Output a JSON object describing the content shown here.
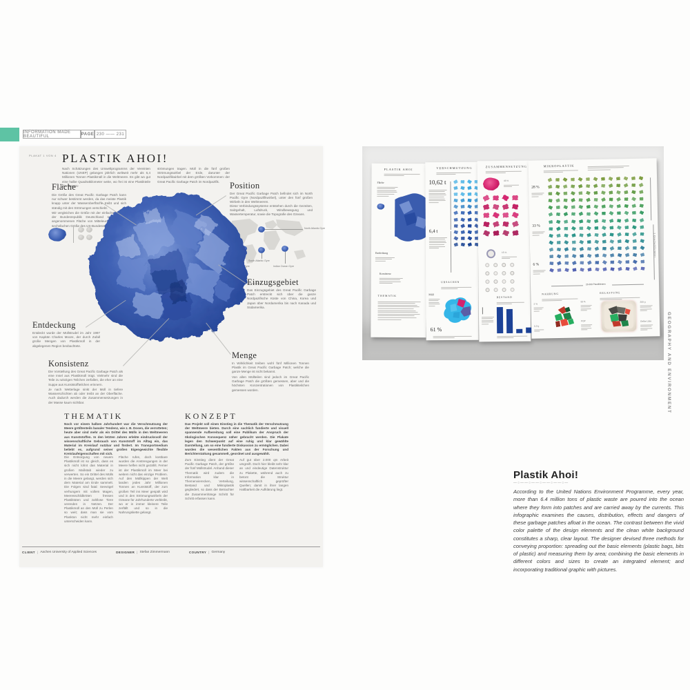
{
  "header": {
    "book_title": "INFORMATION MADE BEAUTIFUL",
    "page_label": "PAGE",
    "page_numbers": "230 —— 231"
  },
  "poster": {
    "corner_note": "PLAKAT 1 VON 4",
    "title": "PLASTIK AHOI!",
    "intro_col1": "Nach Schätzungen des Umweltprogramms der Vereinten Nationen (UNEP) gelangen jährlich weltweit mehr als 6,4 Millionen Tonnen Plastikmüll in die Weltmeere. Es gibt wo gut eine halbe Quadratkilometer weite, wo frei ist eine Plastikteile die Meeres-",
    "intro_col2": "strömungen tragen. Müll in die fünf großen Strömungswirbel der Erde, darunter der Nordpazifikwirbel mit dem größten Vorkommen: der Great Pacific Garbage Patch im Nordpazifik.",
    "sections": {
      "flaeche": {
        "heading": "Fläche",
        "p1": "Die Größe des Great Pacific Garbage Patch kann nur schwer bestimmt werden, da das meiste Plastik knapp unter der Wasseroberfläche treibt und sich ständig mit den Strömungen verschiebt.",
        "p2": "Wir vergleichen die Größe mit der einfachen Fläche der Bundesrepublik Deutschland sowie einer angenommenen Fläche von Mitteleuropa oder der sechsfachen Größe des US-Bundesstaates Texas."
      },
      "position": {
        "heading": "Position",
        "p1": "Der Great Pacific Garbage Patch befindet sich im North Pacific Gyre (Nordpazifikwirbel), unter den fünf großen Wirbeln in den Weltmeeren.",
        "p2": "Diese Verbindungssysteme entstehen durch die Gezeiten, Salzgehalt, Luftdruck, Windbewegung und Wassertemperatur, sowie die Topografie des Ozeans."
      },
      "einzugsgebiet": {
        "heading": "Einzugsgebiet",
        "p1": "Das Einzugsgebiet des Great Pacific Garbage Patch erstreckt sich über die ganze Nordpazifische Küste von China, Korea und Japan über Nordamerika bis nach Kanada und Südamerika."
      },
      "entdeckung": {
        "heading": "Entdeckung",
        "p1": "Entdeckt wurde der Müllstrudel im Jahr 1997 von Kapitän Charles Moore, der durch Zufall große Mengen von Plastikmüll in der abgelegenen Region beobachtete."
      },
      "konsistenz": {
        "heading": "Konsistenz",
        "p1": "Die Vorstellung des Great Pacific Garbage Patch als eine Insel aus Plastikmüll trügt. Vielmehr sind die Teile zu winzigen Teilchen zerfallen, die eher an eine Suppe aus Kunststoffteilchen erinnern.",
        "p2": "Je nach Wetterlage sinkt der Müll in tiefere Wasserschichten ab oder treibt an der Oberfläche. Auch dadurch werden die Zusammensetzungen in der Masse kaum sichtbar."
      },
      "menge": {
        "heading": "Menge",
        "p1": "In Wirklichkeit treiben wohl fünf Millionen Tonnen Plastik im Great Pacific Garbage Patch; welche die ganze Menge ist nicht bekannt.",
        "p2": "Von allen Müllteilen sind jedoch im Great Pacific Garbage Patch die größten gemessen, aber und die höchsten Konzentrationen von Plastikteilchen gemessen worden."
      }
    },
    "map_labels": [
      "North Atlantic Gyre",
      "South Atlantic Gyre",
      "South Pacific Gyre",
      "Indian Ocean Gyre"
    ],
    "thematik": {
      "heading": "THEMATIK",
      "lead": "Noch vor einem halben Jahrhundert war die Verschmutzung der Meere größtenteils banaler Tendenz, wie z. B. Dosen, die verrotteten; heute aber sind mehr als ein Drittel des Mülls in den Weltmeeren aus Kunststoffen. In den letzten Jahren erlebte eindrucksvoll der wissenschaftliche Gebrauch von Kunststoff im Alltag ein, das Material im Kreislauf nutzbar und fördert. Im Transportmedium beliebt es, aufgrund seiner großen Eigengewichte flexible Kreislaufeigenschaften mit sich.",
      "col1": "Die Entsorgung von neuem Plastikmüll ist so gleich, dass es sich nicht lohnt das Material in großen Maßstab wieder zu verwerten. So ein Drittel des Mülls in die Meere gelangt, werden sich dem Material am Ende sammelt. Die Folgen sind fatal: Seevögel verhungern mit vollem Magen, Meeresschildkröten fressen Plastiktüten und zahllose Tiere verenden in Netzen. Der Plastikmüll an den Müll zu Perlen so weit; dass man sie vom Plankton nicht mehr einfach unterscheiden kann.",
      "col2": "Fläche rufen, doch kostbare wurden die Anstrengungen in der Meere helfen nicht gezählt. Ferner ist der Plastikmüll im Meer bei weitem nicht das einzige Problem. Auf den Müllkippen der Welt landen jedes Jahr Millionen Tonnen an Kunststoff, der zum großen Teil ins Meer gespült wird und in den Strömungswirbeln der Ozeane für Jahrhunderte verbleibt, wo er in immer kleinere Teile zerfällt und so in die Nahrungskette gelangt."
    },
    "konzept": {
      "heading": "KONZEPT",
      "lead": "Das Projekt soll einen Einstieg in die Thematik der Verschmutzung der Weltmeere bieten. Durch eine sachlich fundierte und visuell spannende Aufbereitung soll eine Publikum der Anspruch der ökologischen Konsequenz näher gebracht werden. Die Plakate legen den Schwerpunkt auf eine ruhig und klar gewählte Darstellung, um so eine fundierte Diskussion zu ermöglichen. Dabei wurden die wesentlichen Fakten aus der Forschung und Berichterstattung gesammelt, geordnet und ausgewählt.",
      "col1": "Zum Einstieg dient der Great Pacific Garbage Patch, der größte der fünf Müllstrudel. Anhand dieser Thematik wird zudem die Information klar in Themenvierecken, Verteilung, Bestand und Mikroplastik gegliedert, so dass der Betrachter die Zusammenhänge Schritt für Schritt erfassen kann.",
      "col2": "Auf gut über 2.000 qm Arbeit umgreift. Doch hier bleibt sehr klar an und eindeutige Datenstruktur zu Plakette, während auch zu betont die Struktur wissenschaftlich geprüfter Quellen; damit in ihrer langen Haltbarkeit die Aufklärung liegt."
    },
    "footer": {
      "client_label": "CLIENT",
      "client": "Aachen University of Applied Sciences",
      "designer_label": "DESIGNER",
      "designer": "Stefan Zimmermann",
      "country_label": "COUNTRY",
      "country": "Germany"
    }
  },
  "panels": {
    "p1": {
      "title": "PLASTIK AHOI",
      "sections": [
        "Fläche",
        "Entdeckung",
        "Konsistenz",
        "THEMATIK"
      ]
    },
    "p2": {
      "title": "VERSCHMUTZUNG",
      "stat1": "10,62 t",
      "stat2": "6,4 t",
      "bottom_heading": "URSACHEN",
      "muell_label": "Müll",
      "pct": "61 %",
      "grid": {
        "cols": 5,
        "rows": 11,
        "size": 6,
        "gap": 4,
        "row_colors": [
          "#4cb4e6",
          "#37a5de",
          "#4cb4e6",
          "#2f93d2",
          "#3a87c6",
          "#2a5cb0",
          "#2453a8",
          "#1d469c",
          "#2453a8",
          "#1d469c",
          "#16408f"
        ]
      }
    },
    "p3": {
      "title": "ZUSAMMENSETZUNG",
      "pct_top": "43 %",
      "pct_mid": "15 %",
      "bottom_heading": "BESTAND",
      "pink_grid": {
        "cols": 4,
        "rows": 5,
        "size": 9,
        "gap": 5,
        "row_colors": [
          "#d4246e",
          "#c21f62",
          "#d4246e",
          "#b81e5e",
          "#a81a56"
        ]
      },
      "dot_grid": {
        "cols": 4,
        "rows": 4,
        "size": 6,
        "gap": 6,
        "shape": "dot",
        "color": "#b5b4b1"
      },
      "bestand_values": [
        100,
        92,
        17,
        21,
        9
      ]
    },
    "p4": {
      "title": "MIKROPLASTIK",
      "pct1": "28 %",
      "pct2": "33 %",
      "pct3": "6 %",
      "axis_label": "1 Quadratkilometer",
      "caption": "26.000 Plastikfetzen",
      "nahrung_heading": "NAHRUNG",
      "belastung_heading": "BELASTUNG",
      "stat_a": "2 %",
      "stat_b": "93 %",
      "stat_c": "0,3 g",
      "stat_d": "POP",
      "stat_e": "200 g",
      "stat_f": "Gelbe Liste",
      "grid": {
        "cols": 13,
        "rows": 14,
        "size": 6,
        "gap": 5,
        "row_colors": [
          "#7c9c3e",
          "#719c42",
          "#649c48",
          "#559e4f",
          "#479e58",
          "#3a9c64",
          "#319a71",
          "#2c987e",
          "#2b948a",
          "#2f8d93",
          "#36849c",
          "#3e79a4",
          "#476dac",
          "#515fb0"
        ]
      }
    }
  },
  "side_vertical_text": "GEOGRAPHY AND ENVIRONMENT",
  "description": {
    "title": "Plastik Ahoi!",
    "divider": "—○——○——○——○——○—",
    "body": "According to the United Nations Environment Programme, every year, more than 6.4 million tons of plastic waste are poured into the ocean where they form into patches and are carried away by the currents. This infographic examines the causes, distribution, effects and dangers of these garbage patches afloat in the ocean. The contrast between the vivid color palette of the design elements and the clean white background constitutes a sharp, clear layout. The designer devised three methods for conveying proportion: spreading out the basic elements (plastic bags, bits of plastic) and measuring them by area; combining the basic elements in different colors and sizes to create an integrated element; and incorporating traditional graphic with pictures."
  },
  "colors": {
    "teal_tab": "#5ec3a4",
    "bag_blue": "#3c5fb2",
    "light_blue": "#4cb4e6",
    "dark_blue": "#1d4296",
    "magenta": "#d4246e",
    "green": "#479e58",
    "poster_bg": "#f3f2ef"
  }
}
